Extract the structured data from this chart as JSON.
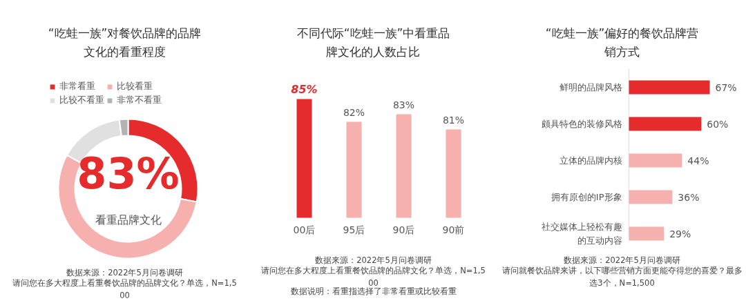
{
  "chart_data": [
    {
      "type": "donut",
      "title": "“吃蛙一族”对餐饮品牌的品牌文化的看重程度",
      "categories": [
        "非常看重",
        "比较看重",
        "比较不看重",
        "非常不看重"
      ],
      "values": [
        28,
        55,
        15,
        2
      ],
      "colors": [
        "#e52b2b",
        "#f6b0ae",
        "#e0e0e0",
        "#b3b3b3"
      ],
      "legend": "top",
      "annotations": [
        "83%",
        "看重品牌文化",
        "数据来源：2022年5月问卷调研",
        "请问您在多大程度上看重餐饮品牌的品牌文化？单选，N=1,500"
      ]
    },
    {
      "type": "bar",
      "title": "不同代际“吃蛙一族”中看重品牌文化的人数占比",
      "categories": [
        "00后",
        "95后",
        "90后",
        "90前"
      ],
      "values": [
        85,
        82,
        83,
        81
      ],
      "colors": [
        "#e52b2b",
        "#f6b0ae",
        "#f6b0ae",
        "#f6b0ae"
      ],
      "value_labels": [
        "85%",
        "82%",
        "83%",
        "81%"
      ],
      "ylim": [
        69.4,
        85
      ],
      "tick_labels": "x",
      "annotations": [
        "数据来源：2022年5月问卷调研",
        "请问您在多大程度上看重餐饮品牌的品牌文化？单选，N=1,500",
        "数据说明：看重指选择了非常看重或比较看重"
      ]
    },
    {
      "type": "bar",
      "orientation": "horizontal",
      "title": "“吃蛙一族”偏好的餐饮品牌营销方式",
      "categories": [
        "鲜明的品牌风格",
        "颇具特色的装修风格",
        "立体的品牌内核",
        "拥有原创的IP形象",
        "社交媒体上轻松有趣的互动内容"
      ],
      "values": [
        67,
        60,
        44,
        36,
        29
      ],
      "colors": [
        "#e52b2b",
        "#e52b2b",
        "#f6b0ae",
        "#f6b0ae",
        "#f6b0ae"
      ],
      "value_labels": [
        "67%",
        "60%",
        "44%",
        "36%",
        "29%"
      ],
      "xlim": [
        0,
        67
      ],
      "tick_labels": "y",
      "annotations": [
        "数据来源：2022年5月问卷调研",
        "请问就餐饮品牌来讲，以下哪些营销方面更能夺得您的喜爱？最多选3个，N=1,500"
      ]
    }
  ]
}
